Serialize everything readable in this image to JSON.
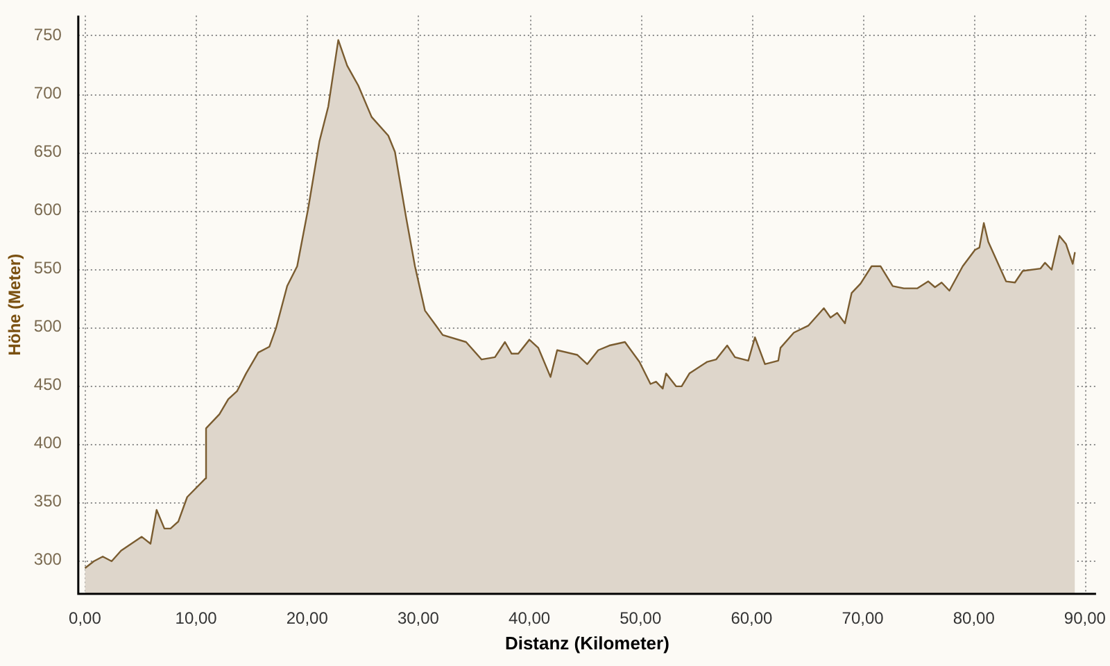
{
  "chart_data": {
    "type": "area",
    "xlabel": "Distanz (Kilometer)",
    "ylabel": "Höhe (Meter)",
    "xlim": [
      -0.6,
      91
    ],
    "ylim": [
      271,
      767
    ],
    "xticks": [
      {
        "value": 0,
        "label": "0,00"
      },
      {
        "value": 10,
        "label": "10,00"
      },
      {
        "value": 20,
        "label": "20,00"
      },
      {
        "value": 30,
        "label": "30,00"
      },
      {
        "value": 40,
        "label": "40,00"
      },
      {
        "value": 50,
        "label": "50,00"
      },
      {
        "value": 60,
        "label": "60,00"
      },
      {
        "value": 70,
        "label": "70,00"
      },
      {
        "value": 80,
        "label": "80,00"
      },
      {
        "value": 90,
        "label": "90,00"
      }
    ],
    "yticks": [
      300,
      350,
      400,
      450,
      500,
      550,
      600,
      650,
      700,
      750
    ],
    "grid": true,
    "legend": false,
    "marker": "none",
    "line_style": "solid",
    "series": [
      {
        "color": "#7a5c30",
        "x": [
          0,
          0.8,
          1.6,
          2.4,
          3.25,
          5.1,
          5.9,
          6.45,
          7.15,
          7.7,
          8.4,
          9.2,
          10.85,
          10.9,
          12.1,
          12.9,
          13.7,
          14.5,
          15.6,
          16.6,
          17.2,
          18.2,
          19.1,
          20.1,
          21.1,
          21.9,
          22.8,
          23.6,
          24.6,
          25.8,
          27.3,
          27.9,
          28.9,
          29.7,
          30.6,
          31.6,
          32.2,
          34.3,
          35.7,
          36.9,
          37.8,
          38.4,
          39.0,
          40.0,
          40.8,
          41.9,
          42.5,
          44.3,
          45.2,
          46.2,
          47.2,
          48.6,
          49.9,
          50.9,
          51.4,
          52.0,
          52.3,
          53.2,
          53.7,
          54.4,
          56.0,
          56.8,
          57.8,
          58.5,
          59.7,
          60.3,
          61.2,
          62.4,
          62.6,
          63.8,
          65.1,
          66.5,
          67.1,
          67.7,
          68.4,
          69.0,
          69.8,
          70.8,
          71.6,
          72.7,
          73.7,
          74.9,
          75.9,
          76.5,
          77.1,
          77.8,
          79.0,
          80.1,
          80.5,
          80.9,
          81.3,
          82.9,
          83.7,
          84.4,
          86.0,
          86.4,
          87.0,
          87.7,
          88.3,
          88.9,
          89.1
        ],
        "values": [
          293,
          299,
          303,
          299,
          308,
          320,
          314,
          343,
          327,
          327,
          333,
          354,
          370,
          413,
          425,
          438,
          445,
          460,
          478,
          483,
          499,
          535,
          552,
          602,
          659,
          689,
          746,
          724,
          707,
          680,
          664,
          650,
          594,
          552,
          514,
          501,
          493,
          487,
          472,
          474,
          487,
          477,
          477,
          489,
          482,
          457,
          480,
          476,
          468,
          480,
          484,
          487,
          470,
          451,
          453,
          447,
          460,
          449,
          449,
          460,
          470,
          472,
          484,
          474,
          471,
          491,
          468,
          471,
          482,
          495,
          501,
          516,
          508,
          512,
          503,
          529,
          537,
          552,
          552,
          535,
          533,
          533,
          539,
          534,
          538,
          531,
          552,
          566,
          568,
          589,
          573,
          539,
          538,
          548,
          550,
          555,
          549,
          578,
          571,
          554,
          564
        ]
      }
    ]
  }
}
